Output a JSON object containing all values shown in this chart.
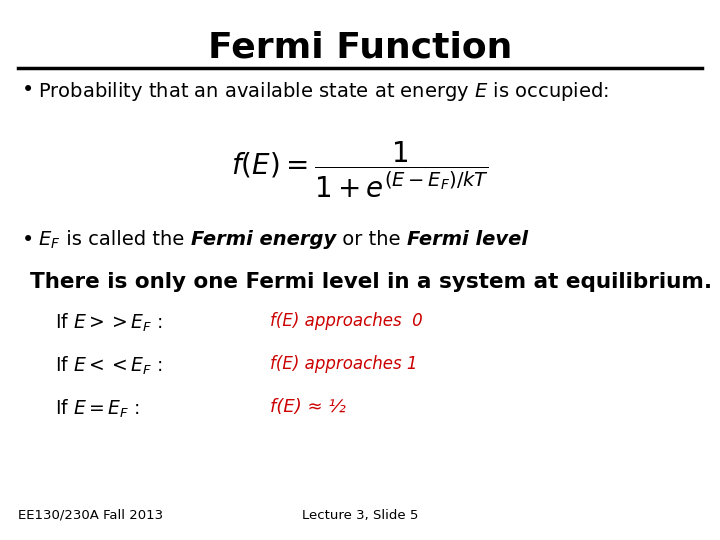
{
  "title": "Fermi Function",
  "title_fontsize": 26,
  "bg_color": "#ffffff",
  "text_color": "#000000",
  "red_color": "#cc0000",
  "footer_left": "EE130/230A Fall 2013",
  "footer_right": "Lecture 3, Slide 5",
  "footer_fontsize": 9.5
}
